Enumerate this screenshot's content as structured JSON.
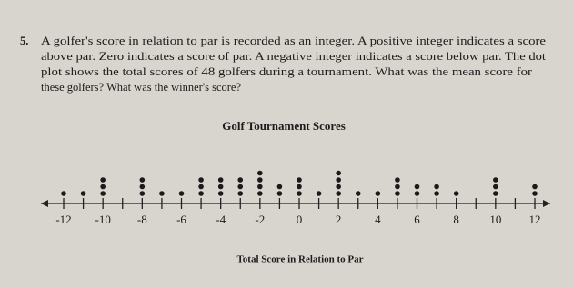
{
  "question": {
    "number": "5.",
    "lines": [
      "A golfer's score in relation to par is recorded as an integer. A positive integer indicates a score",
      "above par. Zero indicates a score of par. A negative integer indicates a score below par. The dot",
      "plot shows the total scores of 48 golfers during a tournament. What was the mean score for",
      "these golfers? What was the winner's score?"
    ]
  },
  "chart_data": {
    "type": "dotplot",
    "title": "Golf Tournament Scores",
    "x_label": "Total Score in Relation to Par",
    "x": [
      -12,
      -11,
      -10,
      -8,
      -7,
      -6,
      -5,
      -4,
      -3,
      -2,
      -1,
      0,
      1,
      2,
      3,
      4,
      5,
      6,
      7,
      8,
      10,
      12
    ],
    "values": [
      1,
      1,
      3,
      3,
      1,
      1,
      3,
      3,
      3,
      4,
      2,
      3,
      1,
      4,
      1,
      1,
      3,
      2,
      2,
      1,
      3,
      2
    ],
    "color": "#1a1a1a",
    "xlim": [
      -12,
      12
    ],
    "xticks": [
      -12,
      -10,
      -8,
      -6,
      -4,
      -2,
      0,
      2,
      4,
      6,
      8,
      10,
      12
    ],
    "minor_xticks": [
      -11,
      -9,
      -7,
      -5,
      -3,
      -1,
      1,
      3,
      5,
      7,
      9,
      11
    ]
  }
}
